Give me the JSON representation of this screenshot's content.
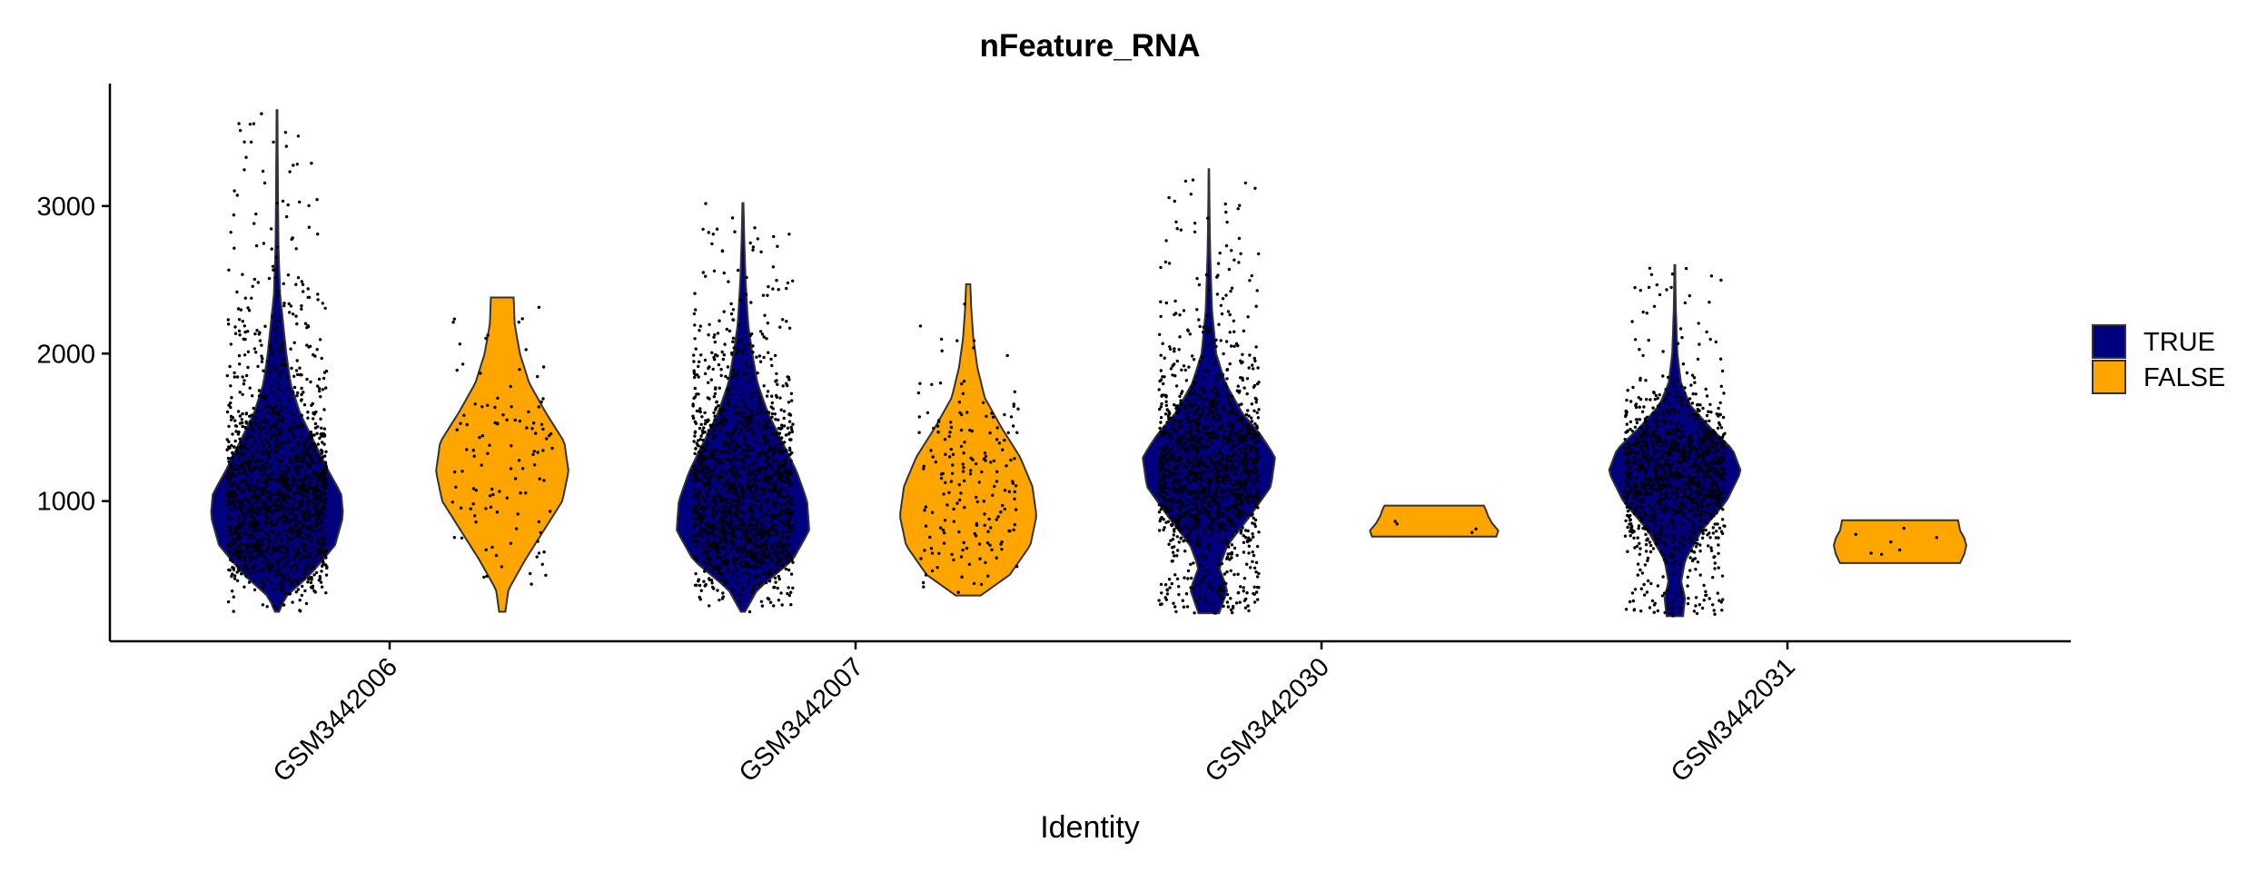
{
  "chart_data": {
    "type": "violin",
    "title": "nFeature_RNA",
    "xlabel": "Identity",
    "ylabel": "",
    "ylim": [
      50,
      3830
    ],
    "yticks": [
      1000,
      2000,
      3000
    ],
    "categories": [
      "GSM3442006",
      "GSM3442007",
      "GSM3442030",
      "GSM3442031"
    ],
    "legend_position": "right",
    "series": [
      {
        "name": "TRUE",
        "color": "#00007F"
      },
      {
        "name": "FALSE",
        "color": "#FFA500"
      }
    ],
    "violins": [
      {
        "category": "GSM3442006",
        "group": "TRUE",
        "min": 250,
        "max": 3650,
        "n_points": 1400,
        "density": [
          [
            250,
            0.02
          ],
          [
            350,
            0.08
          ],
          [
            500,
            0.32
          ],
          [
            700,
            0.56
          ],
          [
            900,
            0.64
          ],
          [
            1050,
            0.62
          ],
          [
            1200,
            0.5
          ],
          [
            1400,
            0.36
          ],
          [
            1600,
            0.22
          ],
          [
            1800,
            0.13
          ],
          [
            2000,
            0.09
          ],
          [
            2200,
            0.06
          ],
          [
            2400,
            0.03
          ],
          [
            2700,
            0.015
          ],
          [
            3000,
            0.01
          ],
          [
            3300,
            0.007
          ],
          [
            3650,
            0.004
          ]
        ]
      },
      {
        "category": "GSM3442006",
        "group": "FALSE",
        "min": 250,
        "max": 2380,
        "n_points": 110,
        "density": [
          [
            250,
            0.03
          ],
          [
            400,
            0.06
          ],
          [
            600,
            0.22
          ],
          [
            800,
            0.4
          ],
          [
            1000,
            0.58
          ],
          [
            1200,
            0.64
          ],
          [
            1400,
            0.6
          ],
          [
            1600,
            0.42
          ],
          [
            1800,
            0.26
          ],
          [
            2000,
            0.17
          ],
          [
            2200,
            0.12
          ],
          [
            2380,
            0.11
          ]
        ]
      },
      {
        "category": "GSM3442007",
        "group": "TRUE",
        "min": 250,
        "max": 3020,
        "n_points": 1400,
        "density": [
          [
            250,
            0.02
          ],
          [
            400,
            0.14
          ],
          [
            600,
            0.48
          ],
          [
            800,
            0.64
          ],
          [
            1000,
            0.62
          ],
          [
            1200,
            0.52
          ],
          [
            1400,
            0.38
          ],
          [
            1600,
            0.24
          ],
          [
            1800,
            0.14
          ],
          [
            2000,
            0.09
          ],
          [
            2200,
            0.05
          ],
          [
            2500,
            0.025
          ],
          [
            2800,
            0.012
          ],
          [
            3020,
            0.005
          ]
        ]
      },
      {
        "category": "GSM3442007",
        "group": "FALSE",
        "min": 360,
        "max": 2470,
        "n_points": 180,
        "density": [
          [
            360,
            0.12
          ],
          [
            500,
            0.4
          ],
          [
            700,
            0.6
          ],
          [
            900,
            0.66
          ],
          [
            1100,
            0.62
          ],
          [
            1300,
            0.5
          ],
          [
            1500,
            0.32
          ],
          [
            1700,
            0.16
          ],
          [
            1900,
            0.09
          ],
          [
            2100,
            0.05
          ],
          [
            2300,
            0.03
          ],
          [
            2470,
            0.02
          ]
        ]
      },
      {
        "category": "GSM3442030",
        "group": "TRUE",
        "min": 240,
        "max": 3250,
        "n_points": 1300,
        "density": [
          [
            240,
            0.1
          ],
          [
            400,
            0.18
          ],
          [
            550,
            0.1
          ],
          [
            700,
            0.18
          ],
          [
            900,
            0.4
          ],
          [
            1100,
            0.6
          ],
          [
            1300,
            0.64
          ],
          [
            1450,
            0.5
          ],
          [
            1600,
            0.32
          ],
          [
            1800,
            0.16
          ],
          [
            2000,
            0.07
          ],
          [
            2300,
            0.03
          ],
          [
            2700,
            0.012
          ],
          [
            3000,
            0.006
          ],
          [
            3250,
            0.003
          ]
        ]
      },
      {
        "category": "GSM3442030",
        "group": "FALSE",
        "min": 760,
        "max": 970,
        "n_points": 4,
        "density": [
          [
            760,
            0.6
          ],
          [
            800,
            0.62
          ],
          [
            850,
            0.56
          ],
          [
            900,
            0.52
          ],
          [
            940,
            0.5
          ],
          [
            970,
            0.48
          ]
        ]
      },
      {
        "category": "GSM3442031",
        "group": "TRUE",
        "min": 220,
        "max": 2600,
        "n_points": 1100,
        "density": [
          [
            220,
            0.08
          ],
          [
            350,
            0.1
          ],
          [
            450,
            0.06
          ],
          [
            600,
            0.1
          ],
          [
            800,
            0.26
          ],
          [
            1000,
            0.5
          ],
          [
            1200,
            0.64
          ],
          [
            1350,
            0.56
          ],
          [
            1500,
            0.34
          ],
          [
            1650,
            0.15
          ],
          [
            1800,
            0.06
          ],
          [
            2000,
            0.025
          ],
          [
            2300,
            0.01
          ],
          [
            2600,
            0.004
          ]
        ]
      },
      {
        "category": "GSM3442031",
        "group": "FALSE",
        "min": 580,
        "max": 870,
        "n_points": 7,
        "density": [
          [
            580,
            0.58
          ],
          [
            640,
            0.62
          ],
          [
            700,
            0.64
          ],
          [
            750,
            0.62
          ],
          [
            800,
            0.58
          ],
          [
            870,
            0.56
          ]
        ]
      }
    ]
  }
}
